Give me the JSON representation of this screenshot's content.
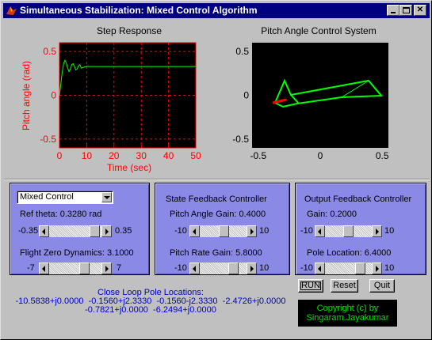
{
  "window": {
    "title": "Simultaneous Stabilization: Mixed Control Algorithm",
    "controls": [
      "minimize-icon",
      "maximize-icon",
      "close-icon"
    ]
  },
  "step_plot": {
    "title": "Step Response",
    "xlabel": "Time (sec)",
    "ylabel": "Pitch angle (rad)",
    "xticks": [
      "0",
      "10",
      "20",
      "30",
      "40",
      "50"
    ],
    "yticks": [
      "0.5",
      "0",
      "-0.5"
    ],
    "colors": {
      "background": "#000000",
      "axis": "#ff0000",
      "grid": "#ff0000",
      "line": "#00ff00"
    }
  },
  "pitch_plot": {
    "title": "Pitch Angle Control System",
    "xticks": [
      "-0.5",
      "0",
      "0.5"
    ],
    "yticks": [
      "0.5",
      "0",
      "-0.5"
    ],
    "colors": {
      "background": "#000000",
      "aircraft": "#00ff00",
      "elevator": "#ff0000"
    }
  },
  "chart_data": [
    {
      "type": "line",
      "title": "Step Response",
      "xlabel": "Time (sec)",
      "ylabel": "Pitch angle (rad)",
      "xlim": [
        0,
        50
      ],
      "ylim": [
        -0.6,
        0.6
      ],
      "grid": true,
      "series": [
        {
          "x": [
            0,
            0.5,
            1,
            1.5,
            2,
            2.5,
            3,
            3.5,
            4,
            4.5,
            5,
            5.5,
            6,
            6.5,
            7,
            7.5,
            8,
            9,
            10,
            12,
            15,
            20,
            30,
            40,
            50
          ],
          "values": [
            0,
            0.12,
            0.26,
            0.36,
            0.4,
            0.37,
            0.31,
            0.27,
            0.3,
            0.35,
            0.36,
            0.33,
            0.29,
            0.3,
            0.34,
            0.35,
            0.31,
            0.32,
            0.33,
            0.328,
            0.328,
            0.328,
            0.328,
            0.328,
            0.328
          ]
        }
      ]
    }
  ],
  "panel_mixed": {
    "dropdown": {
      "selected": "Mixed Control"
    },
    "ref_theta_label": "Ref theta: 0.3280 rad",
    "ref_slider": {
      "min_label": "-0.35",
      "max_label": "0.35",
      "min": -0.35,
      "max": 0.35,
      "value": 0.328
    },
    "flight_zero_label": "Flight Zero Dynamics: 3.1000",
    "zero_slider": {
      "min_label": "-7",
      "max_label": "7",
      "min": -7,
      "max": 7,
      "value": 3.1
    }
  },
  "panel_state": {
    "title": "State Feedback Controller",
    "pitch_angle_label": "Pitch Angle Gain: 0.4000",
    "pitch_angle_slider": {
      "min_label": "-10",
      "max_label": "10",
      "min": -10,
      "max": 10,
      "value": 0.4
    },
    "pitch_rate_label": "Pitch Rate Gain: 5.8000",
    "pitch_rate_slider": {
      "min_label": "-10",
      "max_label": "10",
      "min": -10,
      "max": 10,
      "value": 5.8
    }
  },
  "panel_output": {
    "title": "Output Feedback Controller",
    "gain_label": "Gain: 0.2000",
    "gain_slider": {
      "min_label": "-10",
      "max_label": "10",
      "min": -10,
      "max": 10,
      "value": 0.2
    },
    "pole_label": "Pole Location: 6.4000",
    "pole_slider": {
      "min_label": "-10",
      "max_label": "10",
      "min": -10,
      "max": 10,
      "value": 6.4
    }
  },
  "poles": {
    "title": "Close Loop Pole Locations:",
    "line1": "-10.5838+j0.0000  -0.1560+j2.3330  -0.1560-j2.3330  -2.4726+j0.0000",
    "line2": "-0.7821+j0.0000  -6.2494+j0.0000"
  },
  "buttons": {
    "run": "RUN",
    "reset": "Reset",
    "quit": "Quit"
  },
  "copyright": {
    "line1": "Copyright (c) by",
    "line2": "Singaram.Jayakumar"
  }
}
